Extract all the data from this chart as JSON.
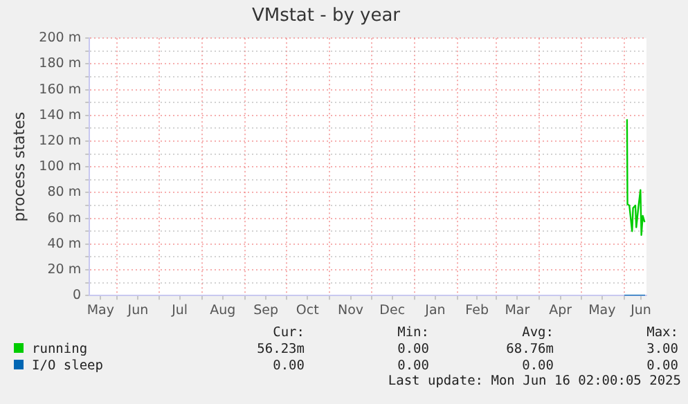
{
  "chart_data": {
    "type": "line",
    "title": "VMstat - by year",
    "ylabel": "process states",
    "xlim": [
      "2024-05-12",
      "2025-06-17"
    ],
    "xticks": [
      {
        "value": "2024-05-20",
        "label": "May"
      },
      {
        "value": "2024-06-01",
        "label": null
      },
      {
        "value": "2024-06-16",
        "label": "Jun"
      },
      {
        "value": "2024-07-01",
        "label": null
      },
      {
        "value": "2024-07-16",
        "label": "Jul"
      },
      {
        "value": "2024-08-01",
        "label": null
      },
      {
        "value": "2024-08-16",
        "label": "Aug"
      },
      {
        "value": "2024-09-01",
        "label": null
      },
      {
        "value": "2024-09-16",
        "label": "Sep"
      },
      {
        "value": "2024-10-01",
        "label": null
      },
      {
        "value": "2024-10-16",
        "label": "Oct"
      },
      {
        "value": "2024-11-01",
        "label": null
      },
      {
        "value": "2024-11-16",
        "label": "Nov"
      },
      {
        "value": "2024-12-01",
        "label": null
      },
      {
        "value": "2024-12-16",
        "label": "Dec"
      },
      {
        "value": "2025-01-01",
        "label": null
      },
      {
        "value": "2025-01-16",
        "label": "Jan"
      },
      {
        "value": "2025-02-01",
        "label": null
      },
      {
        "value": "2025-02-15",
        "label": "Feb"
      },
      {
        "value": "2025-03-01",
        "label": null
      },
      {
        "value": "2025-03-16",
        "label": "Mar"
      },
      {
        "value": "2025-04-01",
        "label": null
      },
      {
        "value": "2025-04-16",
        "label": "Apr"
      },
      {
        "value": "2025-05-01",
        "label": null
      },
      {
        "value": "2025-05-16",
        "label": "May"
      },
      {
        "value": "2025-06-01",
        "label": null
      },
      {
        "value": "2025-06-13",
        "label": "Jun"
      }
    ],
    "ylim": [
      0,
      200
    ],
    "yticks": [
      {
        "value": 0,
        "label": "0"
      },
      {
        "value": 10,
        "label": null
      },
      {
        "value": 20,
        "label": "20 m"
      },
      {
        "value": 30,
        "label": null
      },
      {
        "value": 40,
        "label": "40 m"
      },
      {
        "value": 50,
        "label": null
      },
      {
        "value": 60,
        "label": "60 m"
      },
      {
        "value": 70,
        "label": null
      },
      {
        "value": 80,
        "label": "80 m"
      },
      {
        "value": 90,
        "label": null
      },
      {
        "value": 100,
        "label": "100 m"
      },
      {
        "value": 110,
        "label": null
      },
      {
        "value": 120,
        "label": "120 m"
      },
      {
        "value": 130,
        "label": null
      },
      {
        "value": 140,
        "label": "140 m"
      },
      {
        "value": 150,
        "label": null
      },
      {
        "value": 160,
        "label": "160 m"
      },
      {
        "value": 170,
        "label": null
      },
      {
        "value": 180,
        "label": "180 m"
      },
      {
        "value": 190,
        "label": null
      },
      {
        "value": 200,
        "label": "200 m"
      }
    ],
    "grid": true,
    "legend": "bottom",
    "marker": "none",
    "line_style": "solid",
    "series": [
      {
        "name": "running",
        "color": "#00cc00",
        "x": [
          "2025-06-03T00:00",
          "2025-06-03T08:00",
          "2025-06-04T16:00",
          "2025-06-06T16:00",
          "2025-06-07T08:00",
          "2025-06-09T00:00",
          "2025-06-09T16:00",
          "2025-06-11T08:00",
          "2025-06-12T16:00",
          "2025-06-13T08:00",
          "2025-06-14T08:00",
          "2025-06-15T16:00",
          "2025-06-16T00:00"
        ],
        "values": [
          137,
          71,
          70,
          50,
          68,
          70,
          53,
          70,
          82,
          47,
          62,
          57,
          57
        ]
      },
      {
        "name": "I/O sleep",
        "color": "#0066b3",
        "x": [
          "2025-06-01T00:00",
          "2025-06-16T00:00"
        ],
        "values": [
          0,
          0
        ]
      }
    ],
    "annotations": [
      "Cur:",
      "Min:",
      "Avg:",
      "Max:",
      "56.23m",
      "0.00",
      "68.76m",
      "3.00",
      "0.00",
      "0.00",
      "0.00",
      "0.00",
      "Last update: Mon Jun 16 02:00:05 2025"
    ]
  }
}
